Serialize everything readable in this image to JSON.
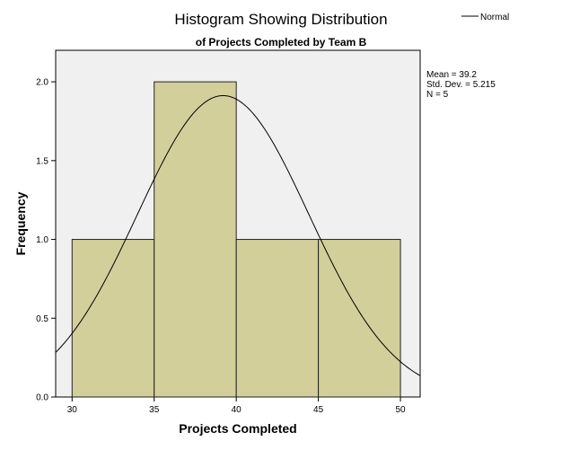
{
  "chart_data": {
    "type": "bar",
    "title": "Histogram Showing Distribution",
    "subtitle": "of Projects Completed by Team B",
    "xlabel": "Projects Completed",
    "ylabel": "Frequency",
    "bins": [
      {
        "start": 30,
        "end": 35,
        "count": 1.0
      },
      {
        "start": 35,
        "end": 40,
        "count": 2.0
      },
      {
        "start": 40,
        "end": 45,
        "count": 1.0
      },
      {
        "start": 45,
        "end": 50,
        "count": 1.0
      }
    ],
    "xlim": [
      29,
      51.2
    ],
    "ylim": [
      0,
      2.2
    ],
    "x_ticks": [
      "30",
      "35",
      "40",
      "45",
      "50"
    ],
    "y_ticks": [
      "0.0",
      "0.5",
      "1.0",
      "1.5",
      "2.0"
    ],
    "stats": {
      "mean_label": "Mean = 39.2",
      "sd_label": "Std. Dev. = 5.215",
      "n_label": "N = 5"
    },
    "normal_curve": {
      "name": "Normal",
      "mean": 39.2,
      "sd": 5.215,
      "n": 5,
      "bin_width": 5
    },
    "legend": {
      "label": "Normal",
      "position": "top-right"
    },
    "colors": {
      "bar_fill": "#d3cf9a",
      "bar_stroke": "#222222",
      "plot_bg": "#f0f0f0",
      "curve": "#000000"
    },
    "grid": false
  }
}
